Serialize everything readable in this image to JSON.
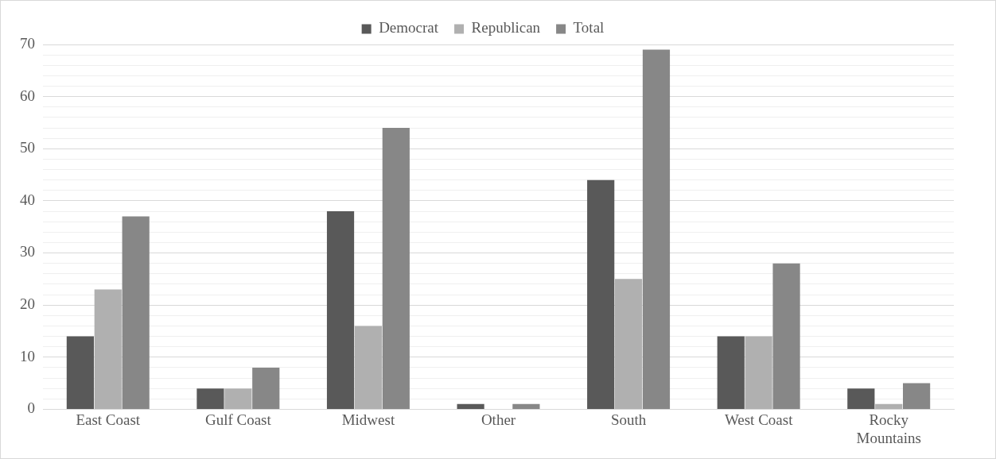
{
  "chart_data": {
    "type": "bar",
    "categories": [
      "East Coast",
      "Gulf Coast",
      "Midwest",
      "Other",
      "South",
      "West Coast",
      "Rocky Mountains"
    ],
    "series": [
      {
        "name": "Democrat",
        "color": "#595959",
        "values": [
          14,
          4,
          38,
          1,
          44,
          14,
          4
        ]
      },
      {
        "name": "Republican",
        "color": "#b0b0b0",
        "values": [
          23,
          4,
          16,
          0,
          25,
          14,
          1
        ]
      },
      {
        "name": "Total",
        "color": "#878787",
        "values": [
          37,
          8,
          54,
          1,
          69,
          28,
          5
        ]
      }
    ],
    "ylim": [
      0,
      70
    ],
    "yticks": [
      0,
      {
        "value": 2,
        "label": null
      },
      {
        "value": 4,
        "label": null
      },
      {
        "value": 6,
        "label": null
      },
      {
        "value": 8,
        "label": null
      },
      10,
      {
        "value": 12,
        "label": null
      },
      {
        "value": 14,
        "label": null
      },
      {
        "value": 16,
        "label": null
      },
      {
        "value": 18,
        "label": null
      },
      20,
      {
        "value": 22,
        "label": null
      },
      {
        "value": 24,
        "label": null
      },
      {
        "value": 26,
        "label": null
      },
      {
        "value": 28,
        "label": null
      },
      30,
      {
        "value": 32,
        "label": null
      },
      {
        "value": 34,
        "label": null
      },
      {
        "value": 36,
        "label": null
      },
      {
        "value": 38,
        "label": null
      },
      40,
      {
        "value": 42,
        "label": null
      },
      {
        "value": 44,
        "label": null
      },
      {
        "value": 46,
        "label": null
      },
      {
        "value": 48,
        "label": null
      },
      50,
      {
        "value": 52,
        "label": null
      },
      {
        "value": 54,
        "label": null
      },
      {
        "value": 56,
        "label": null
      },
      {
        "value": 58,
        "label": null
      },
      60,
      {
        "value": 62,
        "label": null
      },
      {
        "value": 64,
        "label": null
      },
      {
        "value": 66,
        "label": null
      },
      {
        "value": 68,
        "label": null
      },
      70
    ],
    "grid": "y",
    "legend": "top"
  }
}
